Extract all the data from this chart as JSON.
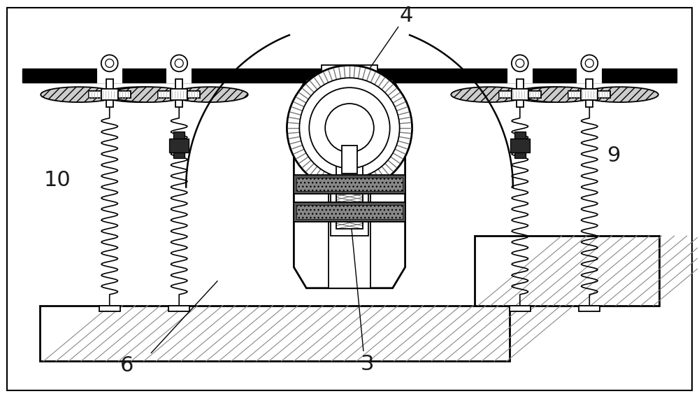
{
  "bg_color": "#ffffff",
  "lc": "#000000",
  "gray1": "#aaaaaa",
  "gray2": "#666666",
  "gray3": "#333333",
  "dark": "#111111",
  "label_color": "#1a1a1a",
  "label_4": "4",
  "label_3": "3",
  "label_6": "6",
  "label_9": "9",
  "label_10": "10",
  "label_fontsize": 22,
  "figsize": [
    10.0,
    5.66
  ],
  "dpi": 100,
  "xlim": [
    0,
    1000
  ],
  "ylim": [
    0,
    566
  ]
}
